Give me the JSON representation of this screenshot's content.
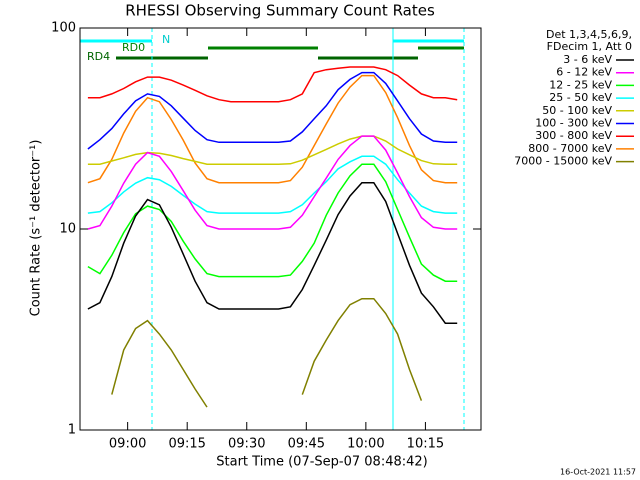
{
  "chart_data": {
    "type": "line",
    "title": "RHESSI Observing Summary Count Rates",
    "x_label": "Start Time (07-Sep-07 08:48:42)",
    "y_label": "Count Rate (s⁻¹ detector⁻¹)",
    "legend_header": [
      "Det 1,3,4,5,6,9,",
      "FDecim 1, Att 0"
    ],
    "footer": "16-Oct-2021 11:57",
    "flag_labels": [
      "N",
      "RD0",
      "RD4"
    ],
    "log_y": true,
    "grid": false,
    "xlim": [
      "08:48",
      "10:29"
    ],
    "xticks": [
      "09:00",
      "09:15",
      "09:30",
      "09:45",
      "10:00",
      "10:15"
    ],
    "ylim": [
      1,
      100
    ],
    "yticks": [
      1,
      10,
      100
    ],
    "x": [
      "08:50",
      "08:53",
      "08:56",
      "08:59",
      "09:02",
      "09:05",
      "09:08",
      "09:11",
      "09:14",
      "09:17",
      "09:20",
      "09:23",
      "09:26",
      "09:29",
      "09:32",
      "09:35",
      "09:38",
      "09:41",
      "09:44",
      "09:47",
      "09:50",
      "09:53",
      "09:56",
      "09:59",
      "10:02",
      "10:05",
      "10:08",
      "10:11",
      "10:14",
      "10:17",
      "10:20",
      "10:23"
    ],
    "series": [
      {
        "name": "3 - 6 keV",
        "color": "#000000",
        "values": [
          4,
          4.3,
          5.8,
          8.5,
          11.6,
          14,
          13.2,
          10.2,
          7.5,
          5.5,
          4.3,
          4,
          4,
          4,
          4,
          4,
          4,
          4.1,
          5,
          6.6,
          8.8,
          11.8,
          14.6,
          17,
          17,
          13.7,
          9.5,
          6.6,
          4.8,
          4.1,
          3.4,
          3.4
        ]
      },
      {
        "name": "6 - 12 keV",
        "color": "#ff00ff",
        "values": [
          10,
          10.4,
          13,
          16.9,
          21,
          24,
          23,
          19.3,
          15.5,
          12.4,
          10.4,
          10,
          10,
          10,
          10,
          10,
          10,
          10.2,
          11.7,
          14.5,
          17.9,
          22.2,
          26,
          29,
          29,
          24.7,
          19,
          14.5,
          11.4,
          10.2,
          10,
          10
        ]
      },
      {
        "name": "12 - 25 keV",
        "color": "#00ff00",
        "values": [
          6.5,
          6,
          7.4,
          9.6,
          11.9,
          13,
          12.5,
          10.9,
          8.7,
          7.1,
          6,
          5.8,
          5.8,
          5.8,
          5.8,
          5.8,
          5.8,
          5.9,
          6.9,
          8.5,
          11.7,
          15.1,
          18.4,
          21,
          21,
          17.2,
          12.5,
          9.1,
          6.7,
          5.9,
          5.5,
          5.5
        ]
      },
      {
        "name": "25 - 50 keV",
        "color": "#00ffff",
        "values": [
          12,
          12.2,
          13.5,
          15.3,
          16.9,
          18,
          17.6,
          16.3,
          14.7,
          13.3,
          12.2,
          12,
          12,
          12,
          12,
          12,
          12,
          12.2,
          13.2,
          15.1,
          17.2,
          19.9,
          21.6,
          23,
          23,
          21,
          17.6,
          15.1,
          13,
          12.2,
          12,
          12
        ]
      },
      {
        "name": "50 - 100 keV",
        "color": "#cccc00",
        "values": [
          21,
          21,
          21.8,
          22.6,
          23.5,
          24,
          23.8,
          23.2,
          22.4,
          21.7,
          21,
          21,
          21,
          21,
          21,
          21,
          21,
          21.1,
          22,
          23.4,
          24.9,
          26.5,
          28,
          29,
          29,
          27.4,
          25,
          23.4,
          21.9,
          21.1,
          21,
          21
        ]
      },
      {
        "name": "100 - 300 keV",
        "color": "#0000ff",
        "values": [
          25,
          27.8,
          31.6,
          37.4,
          43.4,
          47,
          45.7,
          41,
          35.6,
          30.9,
          27.8,
          27,
          27,
          27,
          27,
          27,
          27,
          27.4,
          30.4,
          35.4,
          41,
          49.3,
          55.5,
          60,
          60,
          53,
          43.4,
          35.4,
          29.7,
          27.4,
          27,
          27
        ]
      },
      {
        "name": "300 - 800 keV",
        "color": "#ff0000",
        "values": [
          45,
          45,
          47,
          50,
          54,
          57,
          57,
          55,
          52,
          49,
          46,
          44,
          43,
          43,
          43,
          43,
          43,
          44,
          47,
          60,
          62,
          63,
          64,
          64,
          64,
          62,
          58,
          52,
          47,
          45,
          45,
          44
        ]
      },
      {
        "name": "800 - 7000 keV",
        "color": "#ff8000",
        "values": [
          17,
          17.8,
          22.2,
          30,
          38.5,
          45,
          43,
          35,
          27.7,
          21.3,
          17.8,
          17,
          17,
          17,
          17,
          17,
          17,
          17.4,
          20.3,
          26,
          33.3,
          42.3,
          50.8,
          58,
          58,
          47.7,
          35.8,
          26,
          19.7,
          17.4,
          17,
          17
        ]
      },
      {
        "name": "7000 - 15000 keV",
        "color": "#808000",
        "values": [
          null,
          null,
          1.5,
          2.5,
          3.2,
          3.5,
          3,
          2.5,
          2,
          1.6,
          1.3,
          null,
          null,
          null,
          null,
          null,
          null,
          null,
          1.5,
          2.2,
          2.8,
          3.5,
          4.2,
          4.5,
          4.5,
          3.8,
          3,
          2,
          1.4,
          null,
          null,
          null
        ]
      }
    ]
  }
}
